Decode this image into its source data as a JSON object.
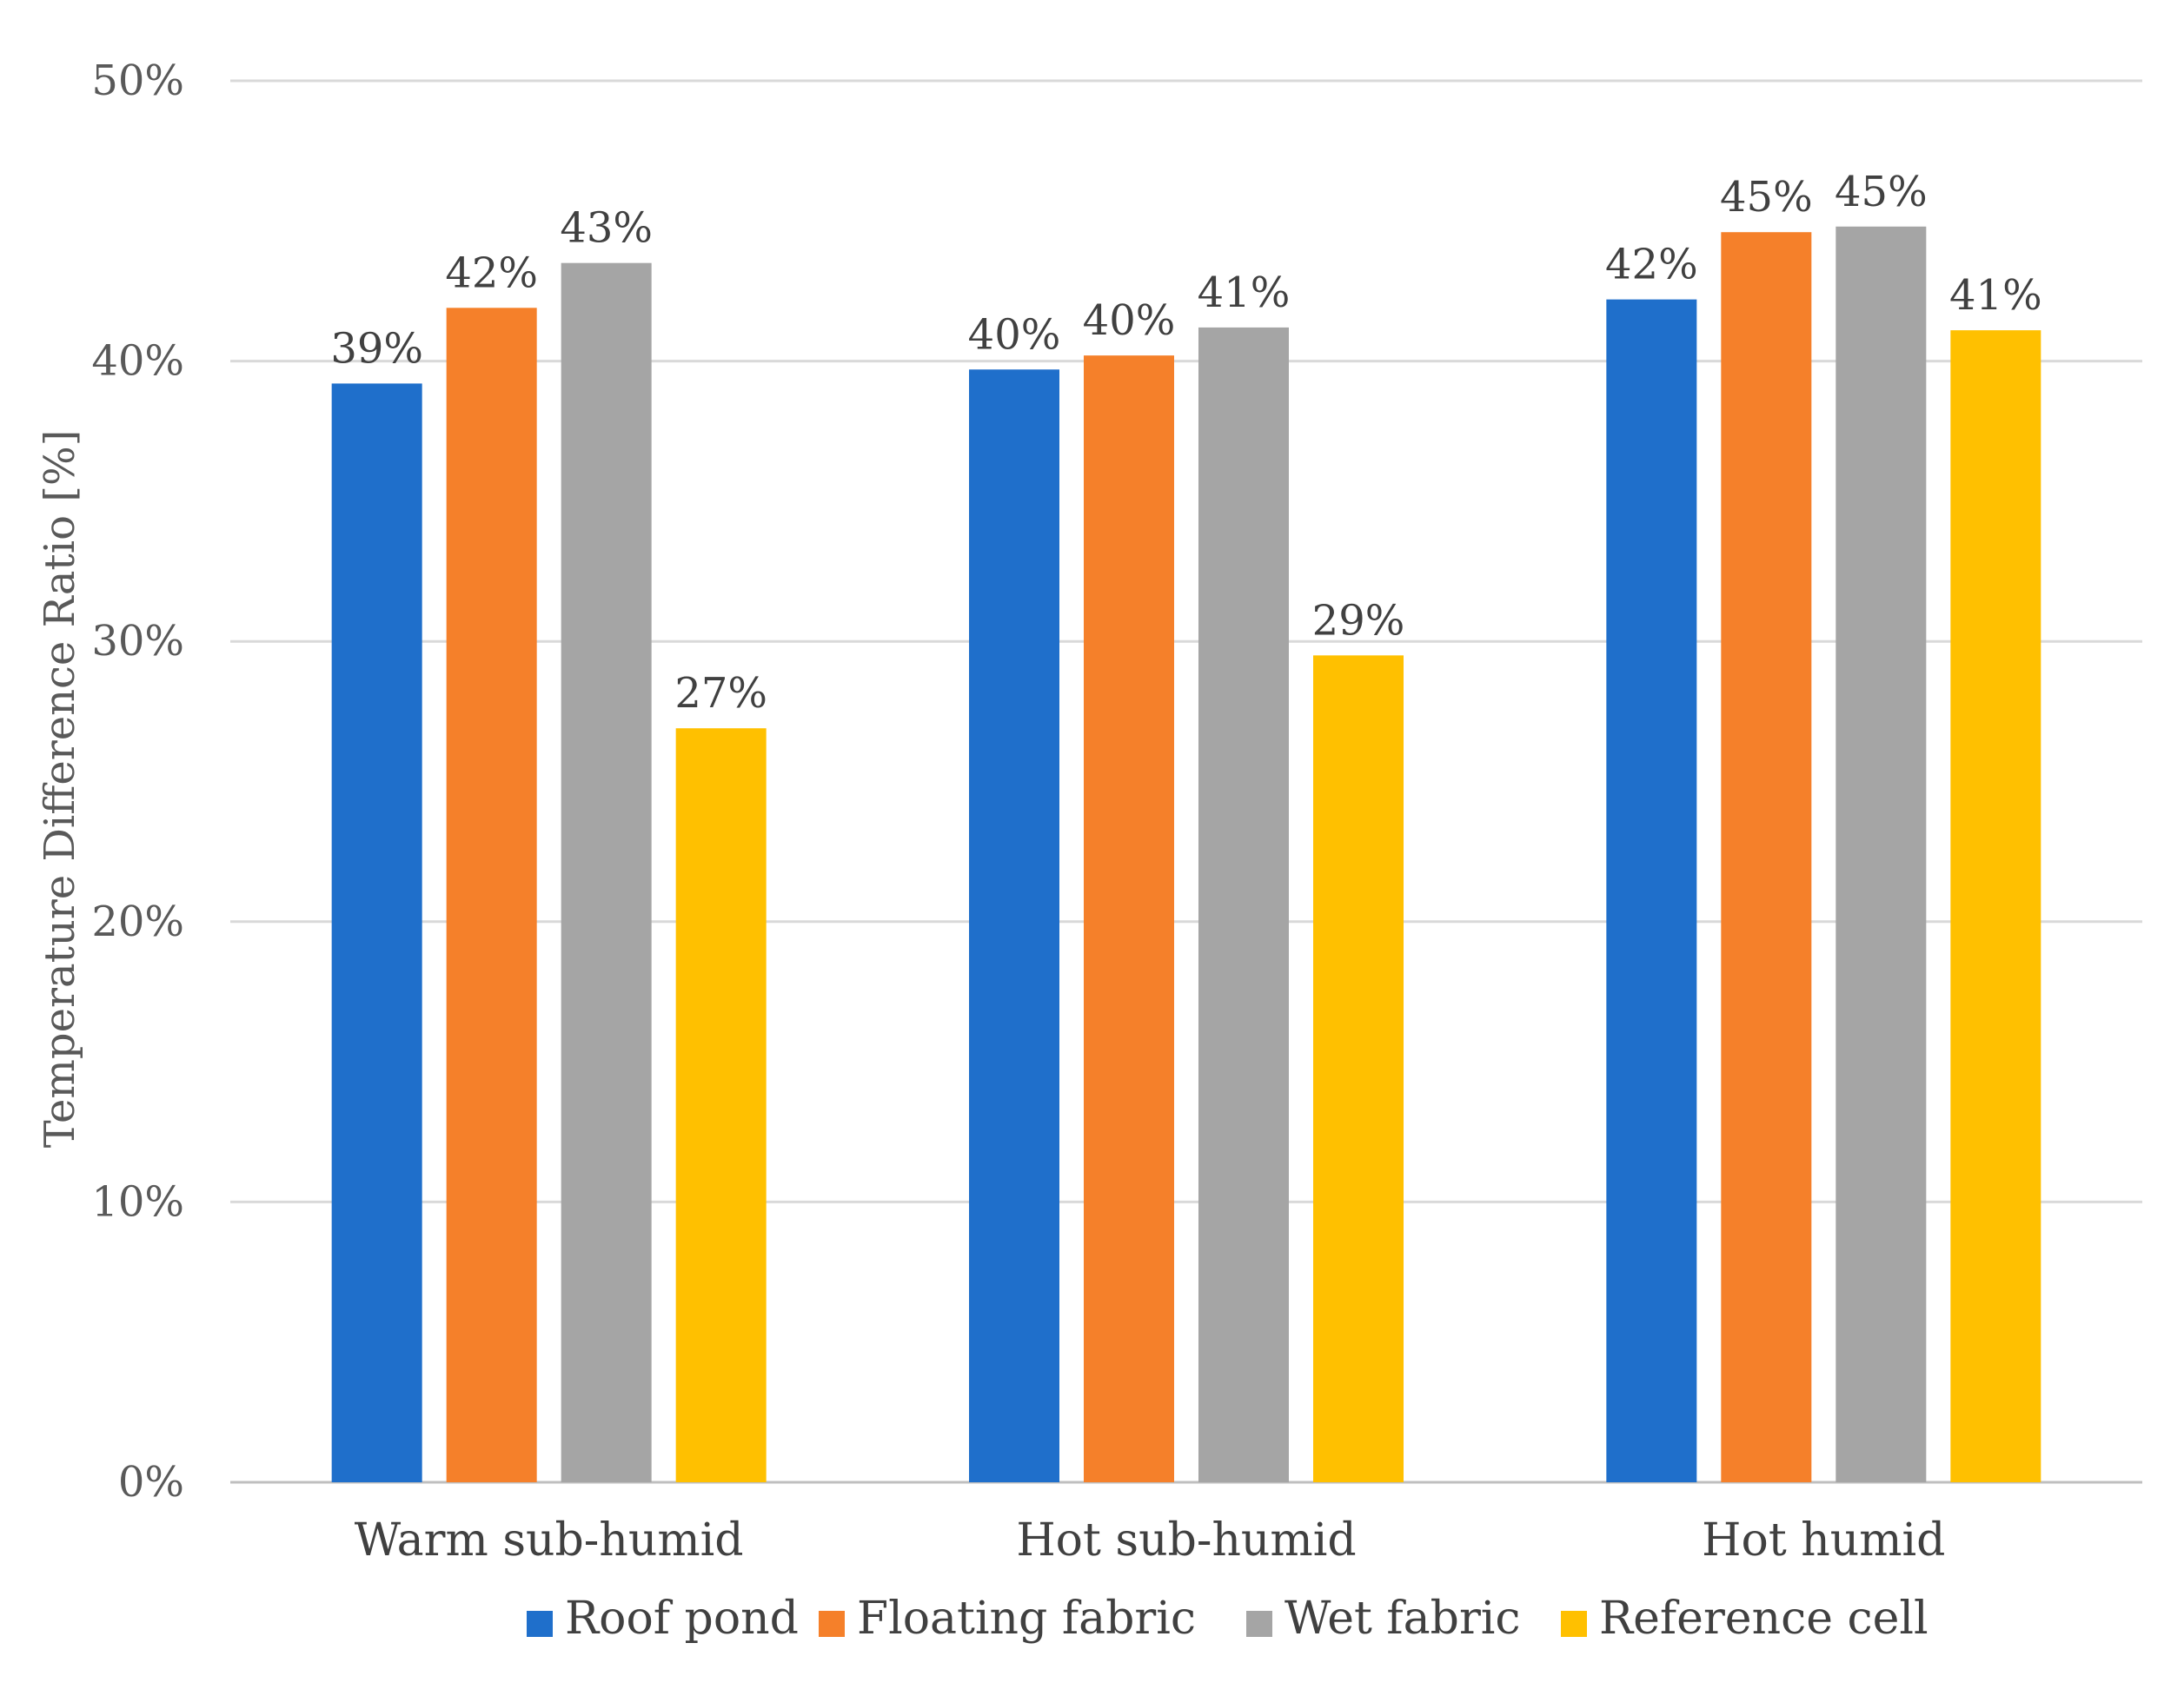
{
  "chart_data": {
    "type": "bar",
    "title": "",
    "xlabel": "",
    "ylabel": "Temperature Difference Ratio [%]",
    "ylim": [
      0,
      50
    ],
    "yticks": [
      0,
      10,
      20,
      30,
      40,
      50
    ],
    "ytick_labels": [
      "0%",
      "10%",
      "20%",
      "30%",
      "40%",
      "50%"
    ],
    "grid": true,
    "legend_position": "bottom",
    "categories": [
      "Warm sub-humid",
      "Hot sub-humid",
      "Hot humid"
    ],
    "series": [
      {
        "name": "Roof pond",
        "color": "#1f6fcb",
        "values": [
          39.2,
          39.7,
          42.2
        ],
        "labels": [
          "39%",
          "40%",
          "42%"
        ]
      },
      {
        "name": "Floating fabric",
        "color": "#f5802a",
        "values": [
          41.9,
          40.2,
          44.6
        ],
        "labels": [
          "42%",
          "40%",
          "45%"
        ]
      },
      {
        "name": "Wet fabric",
        "color": "#a5a5a5",
        "values": [
          43.5,
          41.2,
          44.8
        ],
        "labels": [
          "43%",
          "41%",
          "45%"
        ]
      },
      {
        "name": "Reference cell",
        "color": "#ffc000",
        "values": [
          26.9,
          29.5,
          41.1
        ],
        "labels": [
          "27%",
          "29%",
          "41%"
        ]
      }
    ]
  }
}
